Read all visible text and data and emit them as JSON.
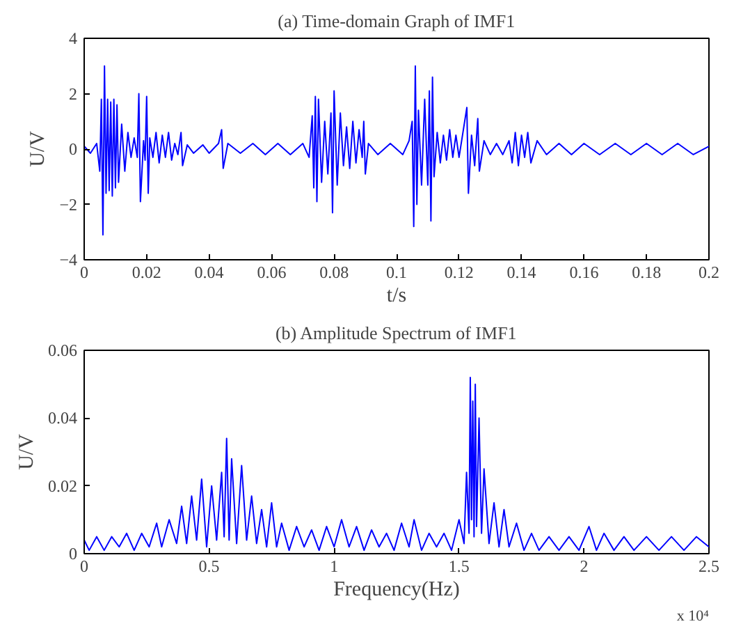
{
  "chart_data": [
    {
      "type": "line",
      "title": "(a) Time-domain Graph of IMF1",
      "xlabel": "t/s",
      "ylabel": "U/V",
      "xlim": [
        0,
        0.2
      ],
      "ylim": [
        -4,
        4
      ],
      "xticks": [
        0,
        0.02,
        0.04,
        0.06,
        0.08,
        0.1,
        0.12,
        0.14,
        0.16,
        0.18,
        0.2
      ],
      "yticks": [
        -4,
        -2,
        0,
        2,
        4
      ],
      "grid": false,
      "series": [
        {
          "color": "#0000ff",
          "x": [
            0,
            0.002,
            0.004,
            0.005,
            0.0055,
            0.006,
            0.0065,
            0.007,
            0.0075,
            0.008,
            0.0085,
            0.009,
            0.0095,
            0.01,
            0.0105,
            0.011,
            0.012,
            0.013,
            0.014,
            0.015,
            0.016,
            0.017,
            0.0175,
            0.018,
            0.019,
            0.0195,
            0.02,
            0.0205,
            0.021,
            0.022,
            0.023,
            0.024,
            0.025,
            0.026,
            0.027,
            0.028,
            0.029,
            0.03,
            0.031,
            0.0315,
            0.033,
            0.035,
            0.038,
            0.04,
            0.043,
            0.044,
            0.0445,
            0.046,
            0.05,
            0.054,
            0.058,
            0.062,
            0.066,
            0.07,
            0.072,
            0.073,
            0.0735,
            0.074,
            0.0745,
            0.075,
            0.076,
            0.077,
            0.078,
            0.079,
            0.0795,
            0.08,
            0.081,
            0.082,
            0.083,
            0.084,
            0.085,
            0.086,
            0.087,
            0.088,
            0.089,
            0.0895,
            0.09,
            0.091,
            0.094,
            0.098,
            0.102,
            0.104,
            0.105,
            0.1055,
            0.106,
            0.1065,
            0.107,
            0.108,
            0.109,
            0.11,
            0.1105,
            0.111,
            0.1115,
            0.112,
            0.113,
            0.114,
            0.115,
            0.116,
            0.117,
            0.118,
            0.119,
            0.12,
            0.1225,
            0.123,
            0.124,
            0.125,
            0.126,
            0.1265,
            0.128,
            0.13,
            0.132,
            0.134,
            0.136,
            0.137,
            0.138,
            0.139,
            0.14,
            0.141,
            0.142,
            0.143,
            0.145,
            0.148,
            0.152,
            0.156,
            0.16,
            0.165,
            0.17,
            0.175,
            0.18,
            0.185,
            0.19,
            0.195,
            0.2
          ],
          "values": [
            0.1,
            -0.15,
            0.2,
            -0.8,
            1.8,
            -3.1,
            3.0,
            -1.6,
            1.8,
            -1.5,
            1.7,
            -1.7,
            1.8,
            -1.4,
            1.6,
            -1.2,
            0.9,
            -0.8,
            0.6,
            -0.3,
            0.4,
            -0.3,
            2.0,
            -1.9,
            0.3,
            -0.4,
            1.9,
            -1.6,
            0.4,
            -0.3,
            0.6,
            -0.5,
            0.5,
            -0.3,
            0.6,
            -0.4,
            0.2,
            -0.2,
            0.6,
            -0.6,
            0.15,
            -0.15,
            0.15,
            -0.15,
            0.2,
            0.7,
            -0.7,
            0.2,
            -0.15,
            0.2,
            -0.2,
            0.2,
            -0.2,
            0.2,
            -0.3,
            1.2,
            -1.4,
            1.9,
            -1.9,
            1.8,
            -1.2,
            1.0,
            -0.9,
            1.3,
            -2.3,
            2.1,
            -1.3,
            1.3,
            -0.6,
            0.8,
            -0.7,
            1.0,
            -0.5,
            0.7,
            -0.3,
            1.0,
            -0.9,
            0.2,
            -0.2,
            0.2,
            -0.2,
            0.3,
            1.0,
            -2.8,
            3.0,
            -2.0,
            1.4,
            -1.3,
            1.8,
            -1.3,
            2.1,
            -2.6,
            2.6,
            -1.0,
            0.6,
            -0.5,
            0.5,
            -0.4,
            0.7,
            -0.3,
            0.5,
            -0.3,
            1.5,
            -1.6,
            0.5,
            -0.6,
            1.1,
            -0.8,
            0.3,
            -0.2,
            0.2,
            -0.2,
            0.3,
            -0.5,
            0.6,
            -0.6,
            0.5,
            -0.3,
            0.6,
            -0.5,
            0.3,
            -0.2,
            0.2,
            -0.2,
            0.2,
            -0.2,
            0.2,
            -0.2,
            0.2,
            -0.2,
            0.2,
            -0.2,
            0.1
          ]
        }
      ]
    },
    {
      "type": "line",
      "title": "(b) Amplitude Spectrum of IMF1",
      "xlabel": "Frequency(Hz)",
      "ylabel": "U/V",
      "annotations": [
        "x 10⁴"
      ],
      "xlim": [
        0,
        2.5
      ],
      "ylim": [
        0,
        0.06
      ],
      "xticks": [
        0,
        0.5,
        1,
        1.5,
        2,
        2.5
      ],
      "yticks": [
        0,
        0.02,
        0.04,
        0.06
      ],
      "grid": false,
      "series": [
        {
          "color": "#0000ff",
          "x": [
            0,
            0.02,
            0.05,
            0.08,
            0.11,
            0.14,
            0.17,
            0.2,
            0.23,
            0.26,
            0.29,
            0.31,
            0.34,
            0.37,
            0.39,
            0.41,
            0.43,
            0.45,
            0.47,
            0.49,
            0.51,
            0.53,
            0.55,
            0.56,
            0.57,
            0.58,
            0.59,
            0.61,
            0.63,
            0.65,
            0.67,
            0.69,
            0.71,
            0.73,
            0.75,
            0.77,
            0.79,
            0.82,
            0.85,
            0.88,
            0.91,
            0.94,
            0.97,
            1.0,
            1.03,
            1.06,
            1.09,
            1.12,
            1.15,
            1.18,
            1.21,
            1.24,
            1.27,
            1.3,
            1.32,
            1.35,
            1.38,
            1.41,
            1.44,
            1.47,
            1.5,
            1.52,
            1.53,
            1.54,
            1.545,
            1.55,
            1.555,
            1.56,
            1.565,
            1.57,
            1.58,
            1.59,
            1.6,
            1.62,
            1.64,
            1.66,
            1.68,
            1.7,
            1.73,
            1.76,
            1.79,
            1.82,
            1.86,
            1.9,
            1.94,
            1.98,
            2.02,
            2.05,
            2.08,
            2.12,
            2.16,
            2.2,
            2.25,
            2.3,
            2.35,
            2.4,
            2.45,
            2.5
          ],
          "values": [
            0.004,
            0.001,
            0.005,
            0.001,
            0.005,
            0.002,
            0.006,
            0.001,
            0.006,
            0.002,
            0.009,
            0.002,
            0.01,
            0.003,
            0.014,
            0.003,
            0.017,
            0.004,
            0.022,
            0.002,
            0.02,
            0.004,
            0.024,
            0.005,
            0.034,
            0.004,
            0.028,
            0.003,
            0.026,
            0.004,
            0.017,
            0.003,
            0.013,
            0.002,
            0.015,
            0.002,
            0.009,
            0.001,
            0.008,
            0.002,
            0.007,
            0.001,
            0.008,
            0.002,
            0.01,
            0.002,
            0.008,
            0.001,
            0.007,
            0.002,
            0.006,
            0.001,
            0.009,
            0.002,
            0.01,
            0.001,
            0.006,
            0.002,
            0.006,
            0.001,
            0.01,
            0.003,
            0.024,
            0.006,
            0.052,
            0.01,
            0.045,
            0.005,
            0.05,
            0.008,
            0.04,
            0.006,
            0.025,
            0.003,
            0.015,
            0.002,
            0.013,
            0.002,
            0.009,
            0.001,
            0.006,
            0.001,
            0.005,
            0.001,
            0.005,
            0.001,
            0.008,
            0.001,
            0.006,
            0.001,
            0.005,
            0.001,
            0.005,
            0.001,
            0.005,
            0.001,
            0.005,
            0.002
          ]
        }
      ]
    }
  ]
}
